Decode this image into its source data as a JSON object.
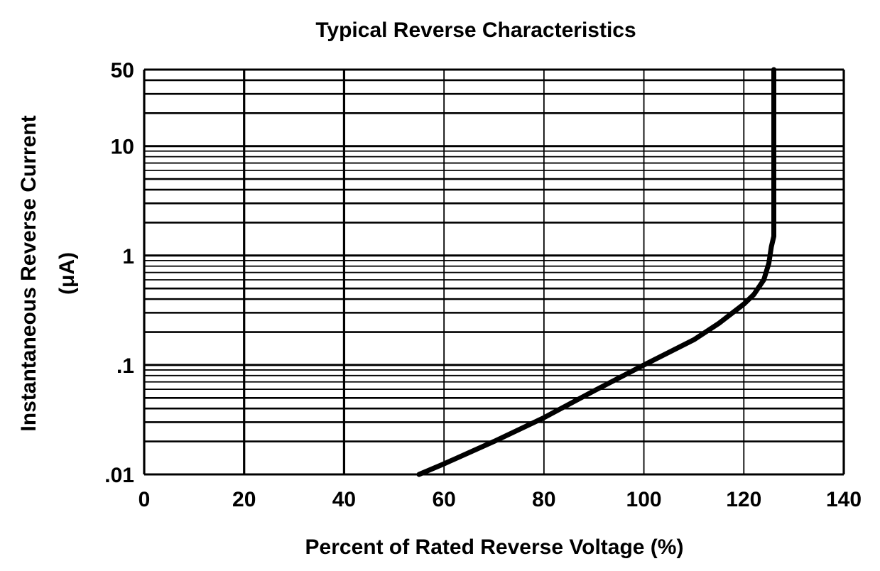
{
  "chart_data": {
    "type": "line",
    "title": "Typical Reverse Characteristics",
    "xlabel": "Percent of Rated Reverse Voltage (%)",
    "ylabel": "Instantaneous Reverse Current",
    "ylabel_unit": "(μA)",
    "x_scale": "linear",
    "y_scale": "log",
    "xlim": [
      0,
      140
    ],
    "ylim": [
      0.01,
      50
    ],
    "x_ticks": [
      0,
      20,
      40,
      60,
      80,
      100,
      120,
      140
    ],
    "x_tick_labels": [
      "0",
      "20",
      "40",
      "60",
      "80",
      "100",
      "120",
      "140"
    ],
    "y_ticks": [
      0.01,
      0.1,
      1,
      10,
      50
    ],
    "y_tick_labels": [
      ".01",
      ".1",
      "1",
      "10",
      "50"
    ],
    "grid": true,
    "series": [
      {
        "x": [
          55,
          60,
          70,
          80,
          90,
          100,
          110,
          115,
          120,
          122,
          124,
          125,
          125.5,
          126,
          126,
          126
        ],
        "y": [
          0.01,
          0.0125,
          0.02,
          0.033,
          0.058,
          0.1,
          0.17,
          0.24,
          0.36,
          0.44,
          0.6,
          0.85,
          1.2,
          1.5,
          10,
          50
        ]
      }
    ]
  }
}
